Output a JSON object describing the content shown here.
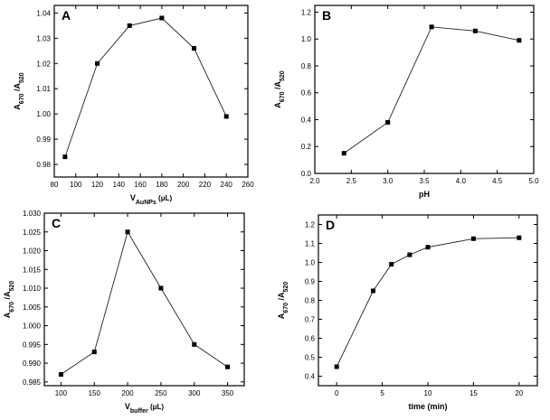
{
  "chart_data": [
    {
      "type": "line",
      "panel": "A",
      "x": [
        90,
        120,
        150,
        180,
        210,
        240
      ],
      "y": [
        0.983,
        1.02,
        1.035,
        1.038,
        1.026,
        0.999
      ],
      "xlabel_main": "V",
      "xlabel_sub": "AuNPs",
      "xlabel_unit": " (μL)",
      "ylabel_main": "A",
      "ylabel_sub1": "670",
      "ylabel_mid": " /A",
      "ylabel_sub2": "520",
      "xlim": [
        80,
        260
      ],
      "ylim": [
        0.975,
        1.043
      ],
      "xticks": [
        80,
        100,
        120,
        140,
        160,
        180,
        200,
        220,
        240,
        260
      ],
      "yticks": [
        0.98,
        0.99,
        1.0,
        1.01,
        1.02,
        1.03,
        1.04
      ],
      "xtick_labels": [
        "80",
        "100",
        "120",
        "140",
        "160",
        "180",
        "200",
        "220",
        "240",
        "260"
      ],
      "ytick_labels": [
        "0.98",
        "0.99",
        "1.00",
        "1.01",
        "1.02",
        "1.03",
        "1.04"
      ],
      "grid": false
    },
    {
      "type": "line",
      "panel": "B",
      "x": [
        2.4,
        3.0,
        3.6,
        4.2,
        4.8
      ],
      "y": [
        0.15,
        0.38,
        1.09,
        1.06,
        0.99
      ],
      "xlabel_main": "pH",
      "xlabel_sub": "",
      "xlabel_unit": "",
      "ylabel_main": "A",
      "ylabel_sub1": "670",
      "ylabel_mid": " /A",
      "ylabel_sub2": "520",
      "xlim": [
        2.0,
        5.0
      ],
      "ylim": [
        0.0,
        1.25
      ],
      "xticks": [
        2.0,
        2.5,
        3.0,
        3.5,
        4.0,
        4.5,
        5.0
      ],
      "yticks": [
        0.0,
        0.2,
        0.4,
        0.6,
        0.8,
        1.0,
        1.2
      ],
      "xtick_labels": [
        "2.0",
        "2.5",
        "3.0",
        "3.5",
        "4.0",
        "4.5",
        "5.0"
      ],
      "ytick_labels": [
        "0.0",
        "0.2",
        "0.4",
        "0.6",
        "0.8",
        "1.0",
        "1.2"
      ],
      "grid": false
    },
    {
      "type": "line",
      "panel": "C",
      "x": [
        100,
        150,
        200,
        250,
        300,
        350
      ],
      "y": [
        0.987,
        0.993,
        1.025,
        1.01,
        0.995,
        0.989
      ],
      "xlabel_main": "V",
      "xlabel_sub": "buffer",
      "xlabel_unit": " (μL)",
      "ylabel_main": "A",
      "ylabel_sub1": "670",
      "ylabel_mid": " /A",
      "ylabel_sub2": "520",
      "xlim": [
        75,
        375
      ],
      "ylim": [
        0.984,
        1.03
      ],
      "xticks": [
        100,
        150,
        200,
        250,
        300,
        350
      ],
      "yticks": [
        0.985,
        0.99,
        0.995,
        1.0,
        1.005,
        1.01,
        1.015,
        1.02,
        1.025,
        1.03
      ],
      "xtick_labels": [
        "100",
        "150",
        "200",
        "250",
        "300",
        "350"
      ],
      "ytick_labels": [
        "0.985",
        "0.990",
        "0.995",
        "1.000",
        "1.005",
        "1.010",
        "1.015",
        "1.020",
        "1.025",
        "1.030"
      ],
      "grid": false
    },
    {
      "type": "line",
      "panel": "D",
      "x": [
        0,
        4,
        6,
        8,
        10,
        15,
        20
      ],
      "y": [
        0.45,
        0.85,
        0.99,
        1.04,
        1.08,
        1.125,
        1.13
      ],
      "xlabel_main": "time (min)",
      "xlabel_sub": "",
      "xlabel_unit": "",
      "ylabel_main": "A",
      "ylabel_sub1": "670",
      "ylabel_mid": " /A",
      "ylabel_sub2": "520",
      "xlim": [
        -2,
        22
      ],
      "ylim": [
        0.35,
        1.25
      ],
      "xticks": [
        0,
        5,
        10,
        15,
        20
      ],
      "yticks": [
        0.4,
        0.5,
        0.6,
        0.7,
        0.8,
        0.9,
        1.0,
        1.1,
        1.2
      ],
      "xtick_labels": [
        "0",
        "5",
        "10",
        "15",
        "20"
      ],
      "ytick_labels": [
        "0.4",
        "0.5",
        "0.6",
        "0.7",
        "0.8",
        "0.9",
        "1.0",
        "1.1",
        "1.2"
      ],
      "grid": false
    }
  ]
}
